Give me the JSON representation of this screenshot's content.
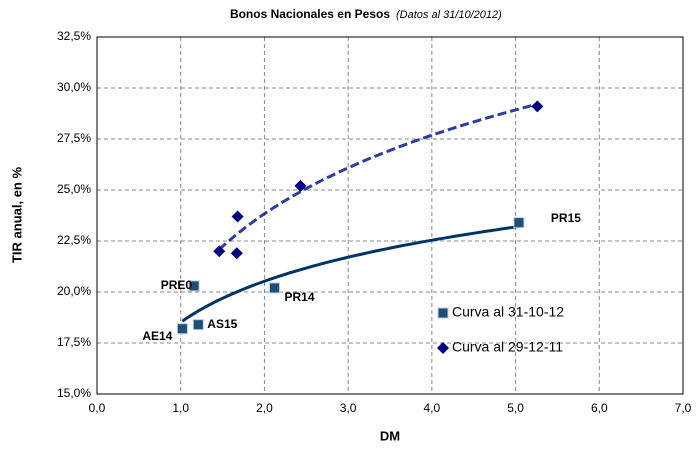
{
  "chart_data": {
    "type": "scatter",
    "title": "Bonos Nacionales en Pesos",
    "subtitle": "(Datos al 31/10/2012)",
    "x_label": "DM",
    "y_label": "TIR anual, en %",
    "xlim": [
      0,
      7
    ],
    "ylim": [
      15,
      32.5
    ],
    "xticks": [
      {
        "value": 0,
        "label": "0,0"
      },
      {
        "value": 1,
        "label": "1,0"
      },
      {
        "value": 2,
        "label": "2,0"
      },
      {
        "value": 3,
        "label": "3,0"
      },
      {
        "value": 4,
        "label": "4,0"
      },
      {
        "value": 5,
        "label": "5,0"
      },
      {
        "value": 6,
        "label": "6,0"
      },
      {
        "value": 7,
        "label": "7,0"
      }
    ],
    "yticks": [
      {
        "value": 15,
        "label": "15,0%"
      },
      {
        "value": 17.5,
        "label": "17,5%"
      },
      {
        "value": 20,
        "label": "20,0%"
      },
      {
        "value": 22.5,
        "label": "22,5%"
      },
      {
        "value": 25,
        "label": "25,0%"
      },
      {
        "value": 27.5,
        "label": "27,5%"
      },
      {
        "value": 30,
        "label": "30,0%"
      },
      {
        "value": 32.5,
        "label": "32,5%"
      }
    ],
    "grid": true,
    "series": [
      {
        "name": "Curva al 31-10-12",
        "color": "#1f4e79",
        "marker": "square",
        "trend": "solid",
        "x": [
          1.02,
          1.21,
          1.16,
          2.12,
          5.04
        ],
        "values": [
          18.2,
          18.4,
          20.3,
          20.2,
          23.4
        ],
        "point_labels": [
          "AE14",
          "AS15",
          "PRE0",
          "PR14",
          "PR15"
        ]
      },
      {
        "name": "Curva al 29-12-11",
        "color": "#000080",
        "marker": "diamond",
        "trend": "dashed",
        "x": [
          1.46,
          1.67,
          1.68,
          2.43,
          5.26
        ],
        "values": [
          22.0,
          21.9,
          23.7,
          25.2,
          29.1
        ]
      }
    ]
  }
}
